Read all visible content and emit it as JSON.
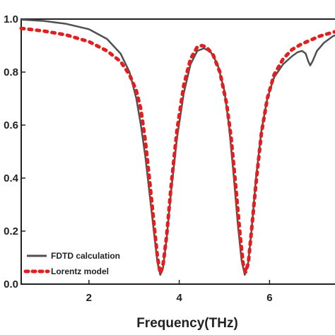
{
  "chart_data": {
    "type": "line",
    "xlabel": "Frequency(THz)",
    "ylabel": "",
    "xlim": [
      0.5,
      7.7
    ],
    "ylim": [
      0.0,
      1.0
    ],
    "x_ticks": [
      {
        "value": 2,
        "label": "2"
      },
      {
        "value": 4,
        "label": "4"
      },
      {
        "value": 6,
        "label": "6"
      }
    ],
    "y_ticks": [
      {
        "value": 0.0,
        "label": "0.0"
      },
      {
        "value": 0.2,
        "label": "0.2"
      },
      {
        "value": 0.4,
        "label": "0.4"
      },
      {
        "value": 0.6,
        "label": "0.6"
      },
      {
        "value": 0.8,
        "label": "0.8"
      },
      {
        "value": 1.0,
        "label": "1.0"
      }
    ],
    "legend_position": "bottom-left",
    "series": [
      {
        "name": "FDTD calculation",
        "style": "solid",
        "color": "#505050",
        "points": [
          [
            0.5,
            0.998
          ],
          [
            1.0,
            0.993
          ],
          [
            1.5,
            0.982
          ],
          [
            2.0,
            0.962
          ],
          [
            2.4,
            0.925
          ],
          [
            2.7,
            0.87
          ],
          [
            2.9,
            0.8
          ],
          [
            3.05,
            0.7
          ],
          [
            3.15,
            0.6
          ],
          [
            3.25,
            0.48
          ],
          [
            3.35,
            0.33
          ],
          [
            3.45,
            0.18
          ],
          [
            3.52,
            0.08
          ],
          [
            3.58,
            0.035
          ],
          [
            3.64,
            0.06
          ],
          [
            3.72,
            0.17
          ],
          [
            3.82,
            0.35
          ],
          [
            3.95,
            0.55
          ],
          [
            4.1,
            0.72
          ],
          [
            4.25,
            0.83
          ],
          [
            4.4,
            0.88
          ],
          [
            4.55,
            0.89
          ],
          [
            4.7,
            0.875
          ],
          [
            4.85,
            0.83
          ],
          [
            5.0,
            0.73
          ],
          [
            5.1,
            0.6
          ],
          [
            5.2,
            0.42
          ],
          [
            5.3,
            0.22
          ],
          [
            5.38,
            0.09
          ],
          [
            5.45,
            0.035
          ],
          [
            5.52,
            0.07
          ],
          [
            5.6,
            0.2
          ],
          [
            5.7,
            0.4
          ],
          [
            5.82,
            0.58
          ],
          [
            5.95,
            0.7
          ],
          [
            6.1,
            0.78
          ],
          [
            6.3,
            0.83
          ],
          [
            6.5,
            0.86
          ],
          [
            6.62,
            0.875
          ],
          [
            6.72,
            0.88
          ],
          [
            6.8,
            0.87
          ],
          [
            6.86,
            0.84
          ],
          [
            6.9,
            0.825
          ],
          [
            6.95,
            0.84
          ],
          [
            7.05,
            0.88
          ],
          [
            7.2,
            0.91
          ],
          [
            7.4,
            0.935
          ],
          [
            7.6,
            0.95
          ],
          [
            7.7,
            0.955
          ]
        ]
      },
      {
        "name": "Lorentz model",
        "style": "dotted",
        "color": "#e02020",
        "points": [
          [
            0.5,
            0.965
          ],
          [
            1.0,
            0.955
          ],
          [
            1.5,
            0.94
          ],
          [
            2.0,
            0.915
          ],
          [
            2.4,
            0.88
          ],
          [
            2.7,
            0.84
          ],
          [
            2.9,
            0.79
          ],
          [
            3.05,
            0.73
          ],
          [
            3.15,
            0.66
          ],
          [
            3.25,
            0.54
          ],
          [
            3.35,
            0.38
          ],
          [
            3.45,
            0.21
          ],
          [
            3.52,
            0.1
          ],
          [
            3.58,
            0.04
          ],
          [
            3.64,
            0.07
          ],
          [
            3.72,
            0.18
          ],
          [
            3.82,
            0.37
          ],
          [
            3.95,
            0.58
          ],
          [
            4.1,
            0.75
          ],
          [
            4.25,
            0.85
          ],
          [
            4.4,
            0.895
          ],
          [
            4.5,
            0.9
          ],
          [
            4.6,
            0.895
          ],
          [
            4.75,
            0.865
          ],
          [
            4.9,
            0.8
          ],
          [
            5.05,
            0.68
          ],
          [
            5.15,
            0.55
          ],
          [
            5.25,
            0.37
          ],
          [
            5.35,
            0.18
          ],
          [
            5.42,
            0.07
          ],
          [
            5.47,
            0.045
          ],
          [
            5.53,
            0.08
          ],
          [
            5.6,
            0.2
          ],
          [
            5.7,
            0.38
          ],
          [
            5.82,
            0.57
          ],
          [
            5.95,
            0.7
          ],
          [
            6.1,
            0.79
          ],
          [
            6.3,
            0.85
          ],
          [
            6.5,
            0.885
          ],
          [
            6.7,
            0.905
          ],
          [
            6.9,
            0.92
          ],
          [
            7.1,
            0.935
          ],
          [
            7.3,
            0.945
          ],
          [
            7.5,
            0.955
          ],
          [
            7.7,
            0.96
          ]
        ]
      }
    ]
  }
}
